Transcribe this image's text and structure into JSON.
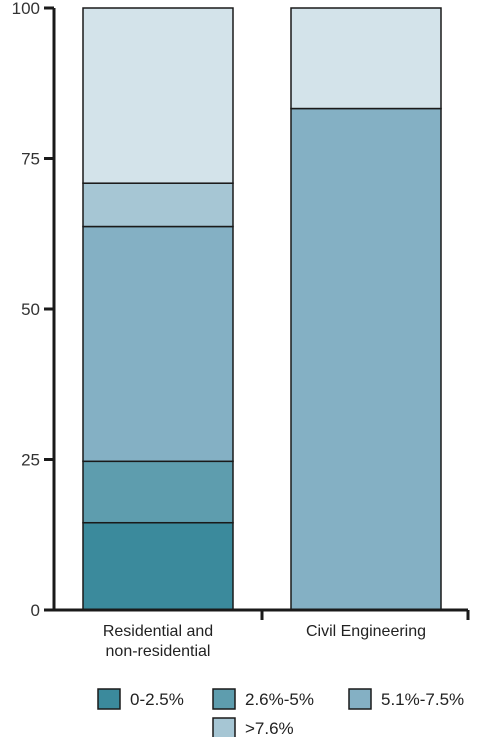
{
  "chart_data": {
    "type": "bar",
    "stacked": true,
    "categories": [
      "Residential and non-residential",
      "Civil Engineering"
    ],
    "category_label_lines": [
      [
        "Residential and",
        "non-residential"
      ],
      [
        "Civil Engineering"
      ]
    ],
    "series": [
      {
        "name": "0-2.5%",
        "values": [
          14.5,
          0
        ],
        "color": "#3b8a9c"
      },
      {
        "name": "2.6%-5%",
        "values": [
          10.2,
          0
        ],
        "color": "#5e9dae"
      },
      {
        "name": "5.1%-7.5%",
        "values": [
          39.0,
          83.3
        ],
        "color": "#84b0c4"
      },
      {
        "name": ">7.6%",
        "values": [
          7.2,
          0
        ],
        "color": "#a6c6d4"
      },
      {
        "name": "",
        "values": [
          29.1,
          16.7
        ],
        "color": "#d3e3ea"
      }
    ],
    "ylim": [
      0,
      100
    ],
    "yticks": [
      "0",
      "25",
      "50",
      "75",
      "100"
    ],
    "ytick_values": [
      0,
      25,
      50,
      75,
      100
    ],
    "legend_position": "bottom",
    "grid": false
  }
}
